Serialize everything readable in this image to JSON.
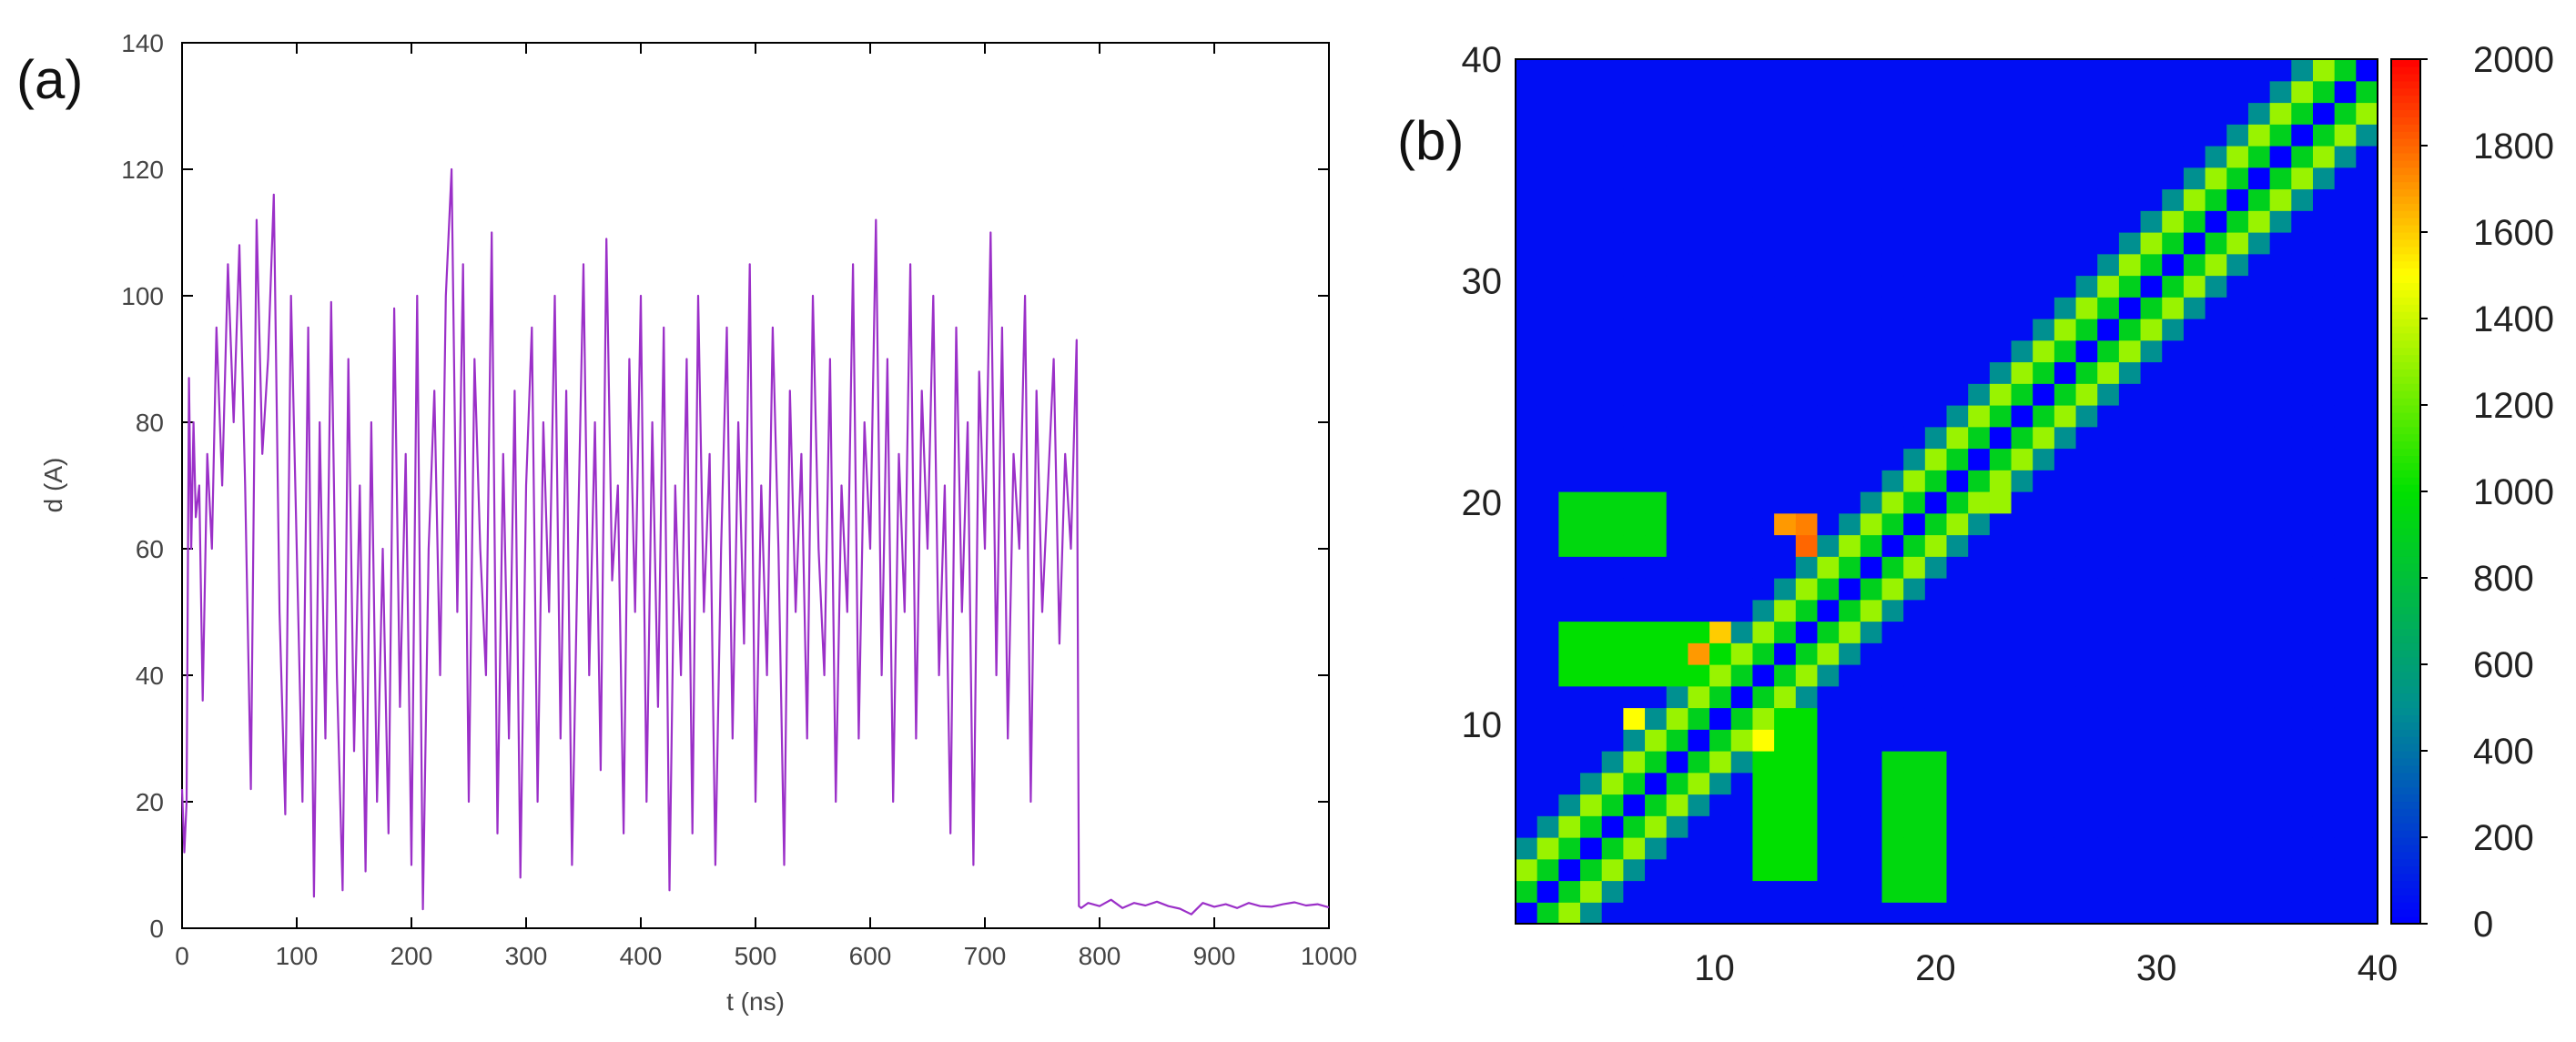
{
  "chart_data": [
    {
      "panel": "(a)",
      "type": "line",
      "xlabel": "t (ns)",
      "ylabel": "d (A)",
      "xlim": [
        0,
        1000
      ],
      "ylim": [
        0,
        140
      ],
      "xticks": [
        0,
        100,
        200,
        300,
        400,
        500,
        600,
        700,
        800,
        900,
        1000
      ],
      "yticks": [
        0,
        20,
        40,
        60,
        80,
        100,
        120,
        140
      ],
      "grid": false,
      "color": "#9b30c8",
      "series": [
        {
          "x": [
            0,
            2,
            4,
            6,
            8,
            10,
            12,
            15,
            18,
            22,
            26,
            30,
            35,
            40,
            45,
            50,
            55,
            60,
            65,
            70,
            75,
            80,
            85,
            90,
            95,
            100,
            105,
            110,
            115,
            120,
            125,
            130,
            135,
            140,
            145,
            150,
            155,
            160,
            165,
            170,
            175,
            180,
            185,
            190,
            195,
            200,
            205,
            210,
            215,
            220,
            225,
            230,
            235,
            240,
            245,
            250,
            255,
            260,
            265,
            270,
            275,
            280,
            285,
            290,
            295,
            300,
            305,
            310,
            315,
            320,
            325,
            330,
            335,
            340,
            345,
            350,
            355,
            360,
            365,
            370,
            375,
            380,
            385,
            390,
            395,
            400,
            405,
            410,
            415,
            420,
            425,
            430,
            435,
            440,
            445,
            450,
            455,
            460,
            465,
            470,
            475,
            480,
            485,
            490,
            495,
            500,
            505,
            510,
            515,
            520,
            525,
            530,
            535,
            540,
            545,
            550,
            555,
            560,
            565,
            570,
            575,
            580,
            585,
            590,
            595,
            600,
            605,
            610,
            615,
            620,
            625,
            630,
            635,
            640,
            645,
            650,
            655,
            660,
            665,
            670,
            675,
            680,
            685,
            690,
            695,
            700,
            705,
            710,
            715,
            720,
            725,
            730,
            735,
            740,
            745,
            750,
            755,
            760,
            765,
            770,
            775,
            780,
            782,
            784,
            790,
            800,
            810,
            820,
            830,
            840,
            850,
            860,
            870,
            880,
            890,
            900,
            910,
            920,
            930,
            940,
            950,
            960,
            970,
            980,
            990,
            1000
          ],
          "y": [
            22,
            12,
            20,
            87,
            60,
            80,
            65,
            70,
            36,
            75,
            60,
            95,
            70,
            105,
            80,
            108,
            70,
            22,
            112,
            75,
            90,
            116,
            50,
            18,
            100,
            60,
            20,
            95,
            5,
            80,
            30,
            99,
            40,
            6,
            90,
            28,
            70,
            9,
            80,
            20,
            60,
            15,
            98,
            35,
            75,
            10,
            100,
            3,
            60,
            85,
            40,
            100,
            120,
            50,
            105,
            20,
            90,
            60,
            40,
            110,
            15,
            75,
            30,
            85,
            8,
            70,
            95,
            20,
            80,
            50,
            100,
            30,
            85,
            10,
            60,
            105,
            40,
            80,
            25,
            109,
            55,
            70,
            15,
            90,
            50,
            100,
            20,
            80,
            35,
            95,
            6,
            70,
            40,
            90,
            15,
            100,
            50,
            75,
            10,
            60,
            95,
            30,
            80,
            45,
            105,
            20,
            70,
            40,
            95,
            60,
            10,
            85,
            50,
            75,
            30,
            100,
            60,
            40,
            90,
            20,
            70,
            50,
            105,
            30,
            80,
            60,
            112,
            40,
            90,
            20,
            75,
            50,
            105,
            30,
            85,
            60,
            100,
            40,
            70,
            15,
            95,
            50,
            80,
            10,
            88,
            60,
            110,
            40,
            95,
            30,
            75,
            60,
            100,
            20,
            85,
            50,
            70,
            90,
            45,
            75,
            60,
            93,
            3.5,
            3.2,
            4,
            3.5,
            4.5,
            3.2,
            4,
            3.6,
            4.2,
            3.5,
            3.1,
            2.2,
            4,
            3.4,
            3.8,
            3.2,
            4,
            3.5,
            3.4,
            3.8,
            4.1,
            3.6,
            3.8,
            3.3
          ]
        }
      ]
    },
    {
      "panel": "(b)",
      "type": "heatmap",
      "xlim": [
        1,
        40
      ],
      "ylim": [
        1,
        40
      ],
      "xticks": [
        10,
        20,
        30,
        40
      ],
      "yticks": [
        10,
        20,
        30,
        40
      ],
      "colorbar": {
        "range": [
          0,
          2000
        ],
        "ticks": [
          0,
          200,
          400,
          600,
          800,
          1000,
          1200,
          1400,
          1600,
          1800,
          2000
        ],
        "colormap": [
          "#0000ff",
          "#009090",
          "#00e000",
          "#ffff00",
          "#ff0000"
        ]
      },
      "background": 50,
      "diagonal_band": {
        "offsets": [
          0,
          1,
          2,
          3
        ],
        "values": [
          0,
          900,
          1300,
          500
        ]
      },
      "hotspots": [
        {
          "i": 14,
          "j": 18,
          "value": 1800
        },
        {
          "i": 13,
          "j": 19,
          "value": 1700
        },
        {
          "i": 14,
          "j": 19,
          "value": 1750
        },
        {
          "i": 9,
          "j": 13,
          "value": 1700
        },
        {
          "i": 10,
          "j": 14,
          "value": 1600
        },
        {
          "i": 12,
          "j": 9,
          "value": 1500
        },
        {
          "i": 6,
          "j": 10,
          "value": 1500
        },
        {
          "i": 23,
          "j": 20,
          "value": 1300
        }
      ],
      "green_patches": [
        {
          "i0": 3,
          "i1": 7,
          "j0": 18,
          "j1": 20,
          "value": 950
        },
        {
          "i0": 3,
          "i1": 10,
          "j0": 12,
          "j1": 14,
          "value": 1000
        },
        {
          "i0": 18,
          "i1": 20,
          "j0": 2,
          "j1": 8,
          "value": 950
        },
        {
          "i0": 12,
          "i1": 14,
          "j0": 3,
          "j1": 10,
          "value": 1000
        }
      ]
    }
  ]
}
